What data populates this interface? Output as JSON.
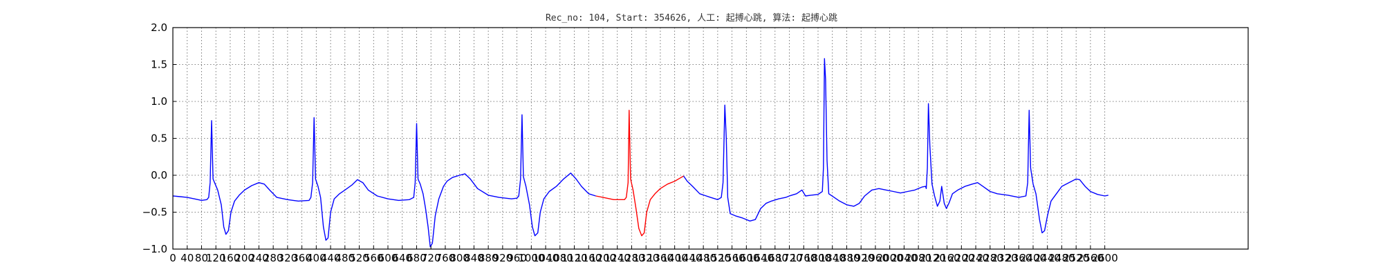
{
  "chart_data": {
    "type": "line",
    "title": "Rec_no: 104, Start: 354626, 人工: 起搏心跳, 算法: 起搏心跳",
    "xlabel": "",
    "ylabel": "",
    "xlim": [
      0,
      3000
    ],
    "ylim": [
      -1.0,
      2.0
    ],
    "x_ticks": [
      0,
      40,
      80,
      120,
      160,
      200,
      240,
      280,
      320,
      360,
      400,
      440,
      480,
      520,
      560,
      600,
      640,
      680,
      720,
      760,
      800,
      840,
      880,
      920,
      960,
      1000,
      1040,
      1080,
      1120,
      1160,
      1200,
      1240,
      1280,
      1320,
      1360,
      1400,
      1440,
      1480,
      1520,
      1560,
      1600,
      1640,
      1680,
      1720,
      1760,
      1800,
      1840,
      1880,
      1920,
      1960,
      2000,
      2040,
      2080,
      2120,
      2160,
      2200,
      2240,
      2280,
      2320,
      2360,
      2400,
      2440,
      2480,
      2520,
      2560,
      2600
    ],
    "x_tick_labels": [
      "0",
      "40",
      "80",
      "120",
      "160",
      "200",
      "240",
      "280",
      "320",
      "360",
      "400",
      "440",
      "480",
      "520",
      "560",
      "600",
      "640",
      "680",
      "720",
      "760",
      "800",
      "840",
      "880",
      "920",
      "960",
      "1000",
      "1040",
      "1080",
      "1120",
      "1160",
      "1200",
      "1240",
      "1280",
      "1320",
      "1360",
      "1400",
      "1440",
      "1480",
      "1520",
      "1560",
      "1600",
      "1640",
      "1680",
      "1720",
      "1760",
      "1800",
      "1840",
      "1880",
      "1920",
      "1960",
      "2000",
      "2040",
      "2080",
      "2120",
      "2160",
      "2200",
      "2240",
      "2280",
      "2320",
      "2360",
      "2400",
      "2440",
      "2480",
      "2520",
      "2560",
      "2600"
    ],
    "y_ticks": [
      -1.0,
      -0.5,
      0.0,
      0.5,
      1.0,
      1.5,
      2.0
    ],
    "y_tick_labels": [
      "−1.0",
      "−0.5",
      "0.0",
      "0.5",
      "1.0",
      "1.5",
      "2.0"
    ],
    "grid": true,
    "colors": {
      "signal": "#0000ff",
      "highlight": "#ff0000"
    },
    "series": [
      {
        "color": "#0000ff",
        "points": [
          [
            0,
            -0.28
          ],
          [
            20,
            -0.29
          ],
          [
            40,
            -0.3
          ],
          [
            60,
            -0.32
          ],
          [
            80,
            -0.34
          ],
          [
            95,
            -0.33
          ],
          [
            100,
            -0.3
          ],
          [
            104,
            -0.1
          ],
          [
            108,
            0.74
          ],
          [
            112,
            -0.05
          ],
          [
            118,
            -0.12
          ],
          [
            125,
            -0.2
          ],
          [
            135,
            -0.4
          ],
          [
            142,
            -0.7
          ],
          [
            148,
            -0.8
          ],
          [
            155,
            -0.75
          ],
          [
            162,
            -0.5
          ],
          [
            172,
            -0.35
          ],
          [
            185,
            -0.27
          ],
          [
            200,
            -0.2
          ],
          [
            220,
            -0.14
          ],
          [
            240,
            -0.1
          ],
          [
            255,
            -0.12
          ],
          [
            270,
            -0.2
          ],
          [
            290,
            -0.3
          ],
          [
            320,
            -0.33
          ],
          [
            350,
            -0.35
          ],
          [
            380,
            -0.34
          ],
          [
            385,
            -0.3
          ],
          [
            390,
            -0.1
          ],
          [
            394,
            0.78
          ],
          [
            398,
            -0.05
          ],
          [
            405,
            -0.15
          ],
          [
            412,
            -0.3
          ],
          [
            420,
            -0.7
          ],
          [
            427,
            -0.88
          ],
          [
            433,
            -0.85
          ],
          [
            440,
            -0.5
          ],
          [
            450,
            -0.32
          ],
          [
            465,
            -0.25
          ],
          [
            480,
            -0.2
          ],
          [
            500,
            -0.13
          ],
          [
            515,
            -0.06
          ],
          [
            530,
            -0.1
          ],
          [
            545,
            -0.2
          ],
          [
            570,
            -0.28
          ],
          [
            600,
            -0.32
          ],
          [
            630,
            -0.34
          ],
          [
            660,
            -0.33
          ],
          [
            672,
            -0.3
          ],
          [
            676,
            -0.1
          ],
          [
            680,
            0.7
          ],
          [
            684,
            -0.05
          ],
          [
            690,
            -0.12
          ],
          [
            698,
            -0.25
          ],
          [
            705,
            -0.45
          ],
          [
            712,
            -0.7
          ],
          [
            718,
            -0.97
          ],
          [
            724,
            -0.92
          ],
          [
            732,
            -0.55
          ],
          [
            742,
            -0.32
          ],
          [
            755,
            -0.15
          ],
          [
            765,
            -0.08
          ],
          [
            780,
            -0.03
          ],
          [
            800,
            0.0
          ],
          [
            815,
            0.02
          ],
          [
            830,
            -0.05
          ],
          [
            850,
            -0.18
          ],
          [
            880,
            -0.27
          ],
          [
            910,
            -0.3
          ],
          [
            945,
            -0.32
          ],
          [
            960,
            -0.31
          ],
          [
            965,
            -0.28
          ],
          [
            970,
            -0.05
          ],
          [
            974,
            0.82
          ],
          [
            978,
            -0.02
          ],
          [
            985,
            -0.15
          ],
          [
            995,
            -0.4
          ],
          [
            1003,
            -0.7
          ],
          [
            1010,
            -0.82
          ],
          [
            1018,
            -0.78
          ],
          [
            1025,
            -0.5
          ],
          [
            1035,
            -0.32
          ],
          [
            1050,
            -0.22
          ],
          [
            1070,
            -0.15
          ],
          [
            1090,
            -0.05
          ],
          [
            1110,
            0.03
          ],
          [
            1125,
            -0.05
          ],
          [
            1140,
            -0.15
          ],
          [
            1160,
            -0.25
          ],
          [
            1180,
            -0.28
          ]
        ]
      },
      {
        "color": "#ff0000",
        "points": [
          [
            1180,
            -0.28
          ],
          [
            1200,
            -0.3
          ],
          [
            1230,
            -0.33
          ],
          [
            1260,
            -0.33
          ],
          [
            1265,
            -0.3
          ],
          [
            1270,
            -0.1
          ],
          [
            1273,
            0.88
          ],
          [
            1277,
            -0.05
          ],
          [
            1284,
            -0.2
          ],
          [
            1292,
            -0.45
          ],
          [
            1300,
            -0.72
          ],
          [
            1308,
            -0.82
          ],
          [
            1315,
            -0.78
          ],
          [
            1322,
            -0.5
          ],
          [
            1332,
            -0.33
          ],
          [
            1345,
            -0.25
          ],
          [
            1360,
            -0.18
          ],
          [
            1380,
            -0.12
          ],
          [
            1400,
            -0.08
          ],
          [
            1418,
            -0.03
          ],
          [
            1425,
            -0.01
          ]
        ]
      },
      {
        "color": "#0000ff",
        "points": [
          [
            1425,
            -0.01
          ],
          [
            1435,
            -0.08
          ],
          [
            1450,
            -0.15
          ],
          [
            1470,
            -0.25
          ],
          [
            1500,
            -0.3
          ],
          [
            1520,
            -0.33
          ],
          [
            1530,
            -0.3
          ],
          [
            1535,
            -0.1
          ],
          [
            1540,
            0.95
          ],
          [
            1544,
            0.5
          ],
          [
            1548,
            -0.3
          ],
          [
            1555,
            -0.52
          ],
          [
            1570,
            -0.55
          ],
          [
            1590,
            -0.58
          ],
          [
            1610,
            -0.62
          ],
          [
            1625,
            -0.6
          ],
          [
            1640,
            -0.45
          ],
          [
            1655,
            -0.38
          ],
          [
            1670,
            -0.35
          ],
          [
            1690,
            -0.32
          ],
          [
            1710,
            -0.3
          ],
          [
            1720,
            -0.28
          ],
          [
            1740,
            -0.25
          ],
          [
            1755,
            -0.2
          ],
          [
            1765,
            -0.28
          ],
          [
            1780,
            -0.27
          ],
          [
            1800,
            -0.26
          ],
          [
            1812,
            -0.22
          ],
          [
            1815,
            0.1
          ],
          [
            1818,
            1.58
          ],
          [
            1821,
            1.3
          ],
          [
            1825,
            0.2
          ],
          [
            1830,
            -0.25
          ],
          [
            1845,
            -0.3
          ],
          [
            1860,
            -0.35
          ],
          [
            1880,
            -0.4
          ],
          [
            1900,
            -0.42
          ],
          [
            1915,
            -0.38
          ],
          [
            1930,
            -0.28
          ],
          [
            1950,
            -0.2
          ],
          [
            1970,
            -0.18
          ],
          [
            1990,
            -0.2
          ],
          [
            2010,
            -0.22
          ],
          [
            2030,
            -0.24
          ],
          [
            2050,
            -0.22
          ],
          [
            2070,
            -0.2
          ],
          [
            2090,
            -0.16
          ],
          [
            2100,
            -0.15
          ],
          [
            2102,
            -0.18
          ],
          [
            2105,
            0.1
          ],
          [
            2108,
            0.97
          ],
          [
            2112,
            0.4
          ],
          [
            2118,
            -0.12
          ],
          [
            2125,
            -0.28
          ],
          [
            2133,
            -0.42
          ],
          [
            2140,
            -0.35
          ],
          [
            2145,
            -0.15
          ],
          [
            2152,
            -0.38
          ],
          [
            2158,
            -0.45
          ],
          [
            2165,
            -0.38
          ],
          [
            2175,
            -0.25
          ],
          [
            2190,
            -0.2
          ],
          [
            2210,
            -0.15
          ],
          [
            2230,
            -0.12
          ],
          [
            2245,
            -0.1
          ],
          [
            2260,
            -0.15
          ],
          [
            2280,
            -0.22
          ],
          [
            2300,
            -0.25
          ],
          [
            2330,
            -0.27
          ],
          [
            2360,
            -0.3
          ],
          [
            2380,
            -0.28
          ],
          [
            2385,
            -0.1
          ],
          [
            2389,
            0.88
          ],
          [
            2393,
            0.1
          ],
          [
            2400,
            -0.12
          ],
          [
            2408,
            -0.25
          ],
          [
            2418,
            -0.6
          ],
          [
            2425,
            -0.78
          ],
          [
            2432,
            -0.75
          ],
          [
            2440,
            -0.55
          ],
          [
            2450,
            -0.35
          ],
          [
            2465,
            -0.25
          ],
          [
            2480,
            -0.15
          ],
          [
            2500,
            -0.1
          ],
          [
            2520,
            -0.05
          ],
          [
            2530,
            -0.06
          ],
          [
            2545,
            -0.15
          ],
          [
            2560,
            -0.22
          ],
          [
            2580,
            -0.26
          ],
          [
            2600,
            -0.28
          ],
          [
            2610,
            -0.27
          ]
        ]
      }
    ]
  }
}
